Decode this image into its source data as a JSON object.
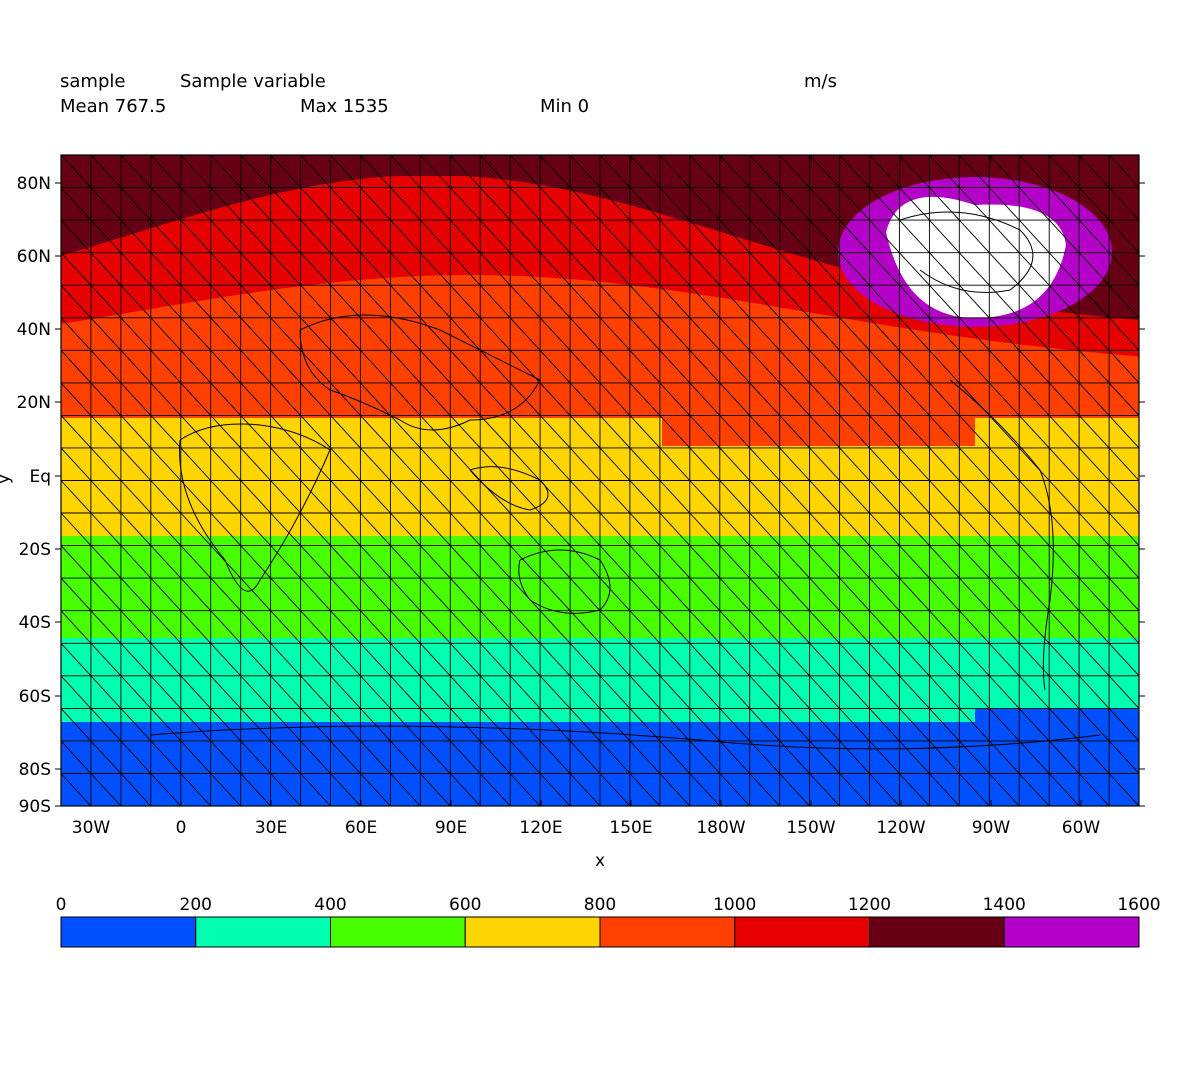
{
  "header": {
    "variable_name": "sample",
    "long_name": "Sample variable",
    "units": "m/s",
    "mean_label": "Mean 767.5",
    "max_label": "Max 1535",
    "min_label": "Min 0"
  },
  "chart_data": {
    "type": "heatmap",
    "title": "Sample variable",
    "xlabel": "x",
    "ylabel": "y",
    "units": "m/s",
    "stats": {
      "mean": 767.5,
      "max": 1535,
      "min": 0
    },
    "grid": true,
    "projection": "rotated-pole lat/lon grid with overlaid world coastlines",
    "x_ticks": [
      "30W",
      "0",
      "30E",
      "60E",
      "90E",
      "120E",
      "150E",
      "180W",
      "150W",
      "120W",
      "90W",
      "60W"
    ],
    "y_ticks": [
      "80N",
      "60N",
      "40N",
      "20N",
      "Eq",
      "20S",
      "40S",
      "60S",
      "80S",
      "90S"
    ],
    "colorbar": {
      "placement": "bottom",
      "levels": [
        0,
        200,
        400,
        600,
        800,
        1000,
        1200,
        1400,
        1600
      ],
      "colors": [
        "#0050ff",
        "#00ffb0",
        "#48ff00",
        "#ffd500",
        "#ff4000",
        "#e60000",
        "#670014",
        "#b400c8"
      ]
    },
    "fill_below_lowest_level": "#ffffff"
  }
}
